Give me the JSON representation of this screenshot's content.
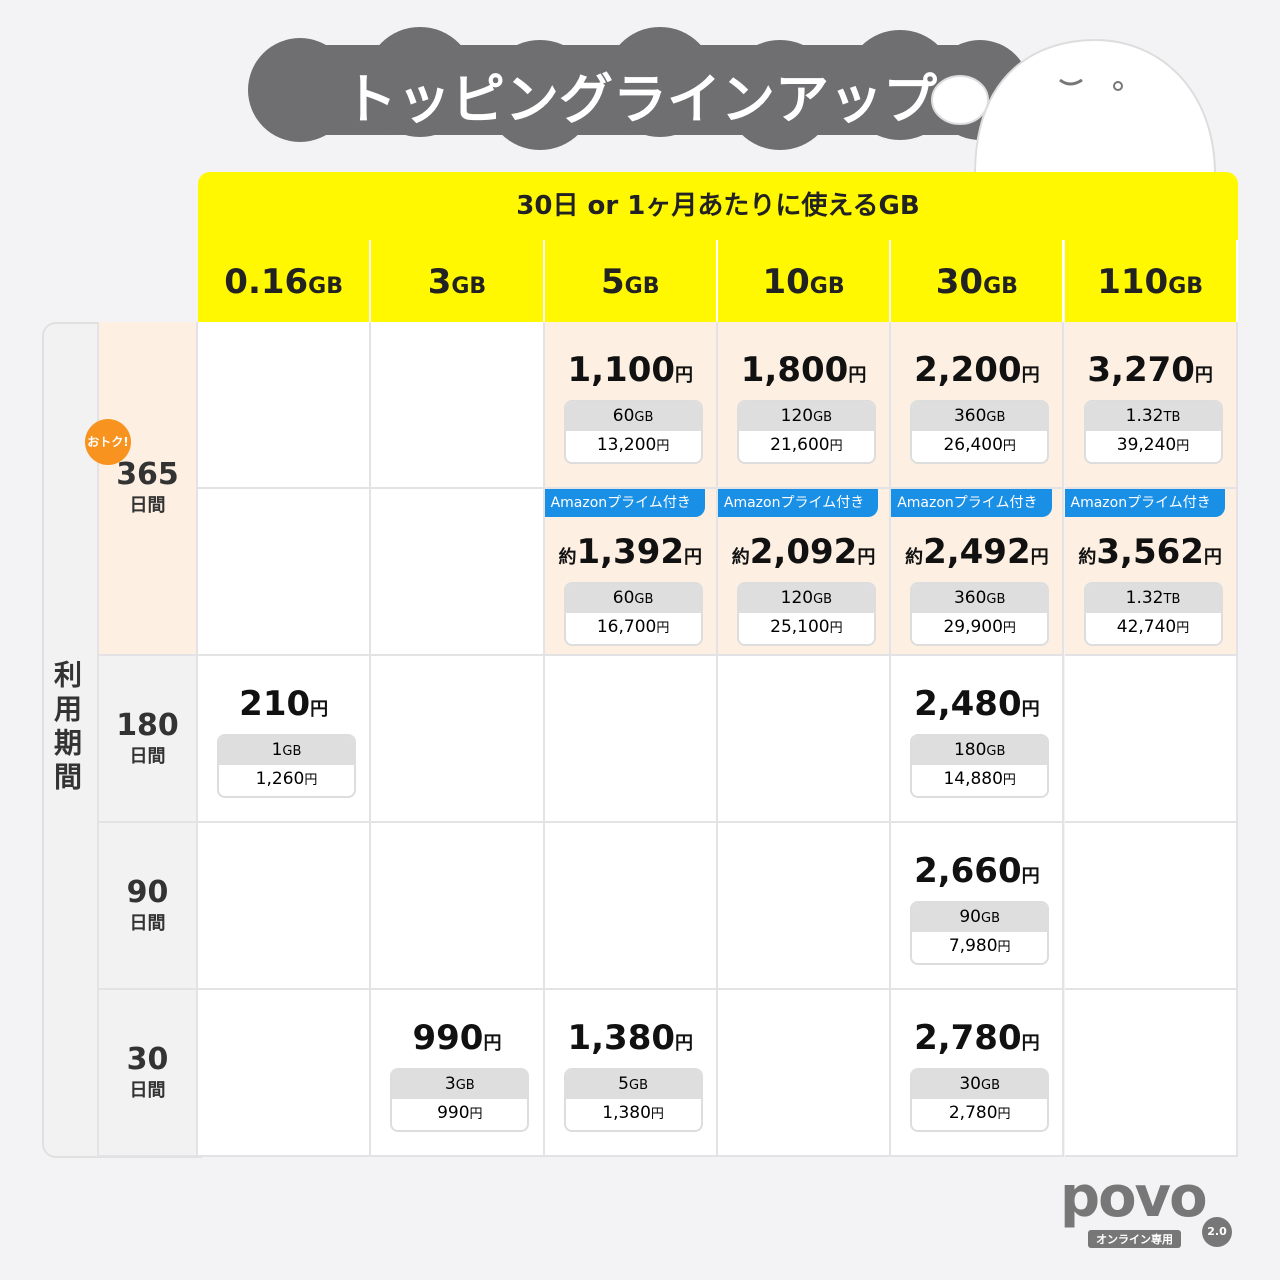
{
  "title": "トッピングラインアップ",
  "header": "30日 or 1ヶ月あたりに使えるGB",
  "units": {
    "yen": "円",
    "approx": "約",
    "days": "日間",
    "gb": "GB"
  },
  "columns": [
    "0.16",
    "3",
    "5",
    "10",
    "30",
    "110"
  ],
  "period_label": "利用期間",
  "badge": "おトク!",
  "amazon_label": "Amazonプライム付き",
  "rows": [
    {
      "days": "365",
      "lines": [
        [
          null,
          null,
          {
            "price": "1,100",
            "data": "60",
            "data_unit": "GB",
            "total": "13,200"
          },
          {
            "price": "1,800",
            "data": "120",
            "data_unit": "GB",
            "total": "21,600"
          },
          {
            "price": "2,200",
            "data": "360",
            "data_unit": "GB",
            "total": "26,400"
          },
          {
            "price": "3,270",
            "data": "1.32",
            "data_unit": "TB",
            "total": "39,240"
          }
        ],
        [
          null,
          null,
          {
            "price": "1,392",
            "data": "60",
            "data_unit": "GB",
            "total": "16,700",
            "amazon": true
          },
          {
            "price": "2,092",
            "data": "120",
            "data_unit": "GB",
            "total": "25,100",
            "amazon": true
          },
          {
            "price": "2,492",
            "data": "360",
            "data_unit": "GB",
            "total": "29,900",
            "amazon": true
          },
          {
            "price": "3,562",
            "data": "1.32",
            "data_unit": "TB",
            "total": "42,740",
            "amazon": true
          }
        ]
      ]
    },
    {
      "days": "180",
      "lines": [
        [
          {
            "price": "210",
            "data": "1",
            "data_unit": "GB",
            "total": "1,260"
          },
          null,
          null,
          null,
          {
            "price": "2,480",
            "data": "180",
            "data_unit": "GB",
            "total": "14,880"
          },
          null
        ]
      ]
    },
    {
      "days": "90",
      "lines": [
        [
          null,
          null,
          null,
          null,
          {
            "price": "2,660",
            "data": "90",
            "data_unit": "GB",
            "total": "7,980"
          },
          null
        ]
      ]
    },
    {
      "days": "30",
      "lines": [
        [
          null,
          {
            "price": "990",
            "data": "3",
            "data_unit": "GB",
            "total": "990"
          },
          {
            "price": "1,380",
            "data": "5",
            "data_unit": "GB",
            "total": "1,380"
          },
          null,
          {
            "price": "2,780",
            "data": "30",
            "data_unit": "GB",
            "total": "2,780"
          },
          null
        ]
      ]
    }
  ],
  "logo": {
    "name": "povo",
    "tagline": "オンライン専用",
    "version": "2.0"
  }
}
